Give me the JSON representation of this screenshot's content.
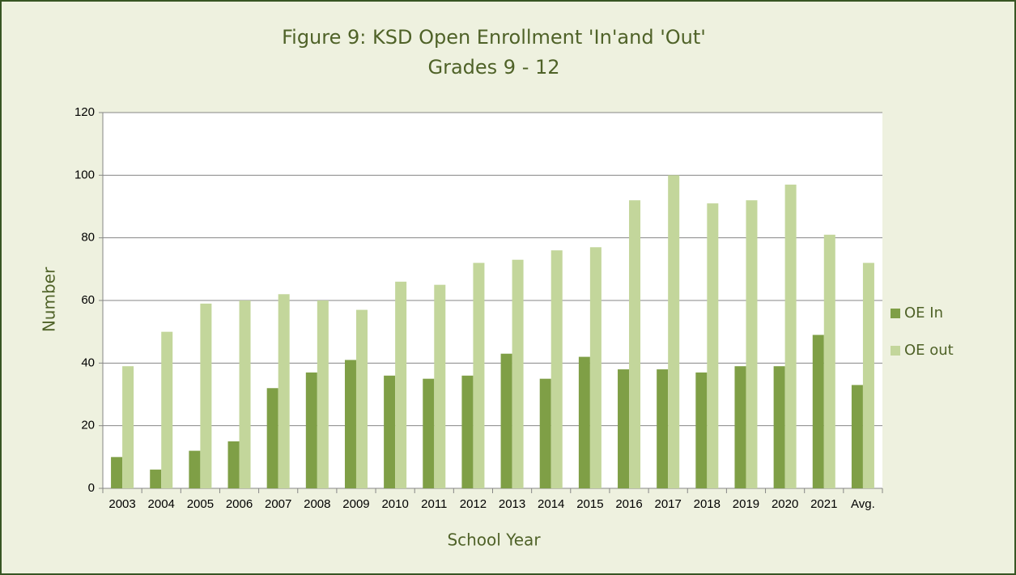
{
  "chart_data": {
    "type": "bar",
    "title": "Figure 9: KSD Open Enrollment 'In'and 'Out'",
    "subtitle": "Grades 9 - 12",
    "x_label": "School Year",
    "y_label": "Number",
    "categories": [
      "2003",
      "2004",
      "2005",
      "2006",
      "2007",
      "2008",
      "2009",
      "2010",
      "2011",
      "2012",
      "2013",
      "2014",
      "2015",
      "2016",
      "2017",
      "2018",
      "2019",
      "2020",
      "2021",
      "Avg."
    ],
    "series": [
      {
        "name": "OE In",
        "color": "#7f9f46",
        "values": [
          10,
          6,
          12,
          15,
          32,
          37,
          41,
          36,
          35,
          36,
          43,
          35,
          42,
          38,
          38,
          37,
          39,
          39,
          49,
          33
        ]
      },
      {
        "name": "OE out",
        "color": "#c3d69b",
        "values": [
          39,
          50,
          59,
          60,
          62,
          60,
          57,
          66,
          65,
          72,
          73,
          76,
          77,
          92,
          100,
          91,
          92,
          97,
          81,
          72
        ]
      }
    ],
    "ylim": [
      0,
      120
    ],
    "yticks": [
      0,
      20,
      40,
      60,
      80,
      100,
      120
    ],
    "grid": true,
    "legend": "right"
  }
}
